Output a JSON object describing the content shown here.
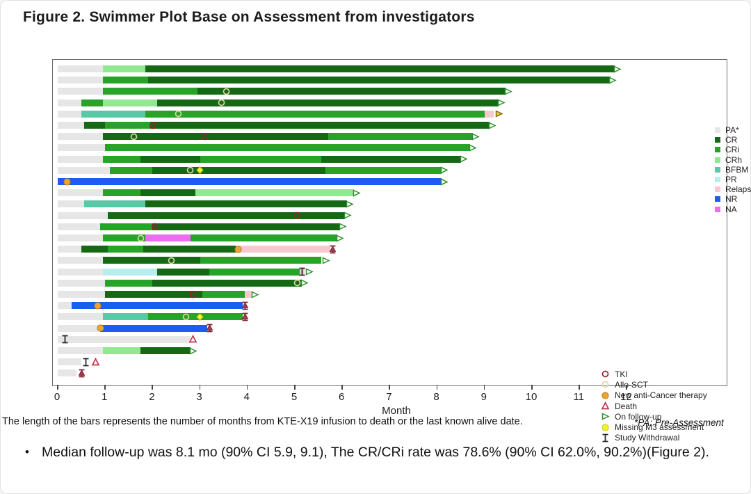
{
  "title": "Figure 2. Swimmer Plot Base on Assessment from investigators",
  "axis": {
    "label": "Month",
    "ticks": [
      "0",
      "1",
      "2",
      "3",
      "4",
      "5",
      "6",
      "7",
      "8",
      "9",
      "10",
      "11",
      "12"
    ]
  },
  "footnote_left": "The length of the bars represents the number of months from KTE-X19 infusion to death or the last known alive date.",
  "footnote_right": "*PA: Pre-Assessment",
  "bullet": {
    "marker": "•",
    "text": "Median follow-up was 8.1 mo (90% CI 5.9, 9.1), The CR/CRi rate was 78.6% (90% CI 62.0%, 90.2%)(Figure 2)."
  },
  "colors": {
    "PA": "#e6e6e6",
    "CR": "#156915",
    "CRi": "#27a327",
    "CRh": "#90e890",
    "BFBM": "#58c9a6",
    "PR": "#b7eded",
    "Relapse": "#f6c9ce",
    "NR": "#1d5cf0",
    "NA": "#ee6cee",
    "tki": "#95202e",
    "allo": "#ddd6a2",
    "orange": "#f0a335",
    "death": "#c4324a",
    "followup": "#2f8f2f",
    "m3": "#f2f22c",
    "wd": "#2b2b2b",
    "wd_death": "#7e2533"
  },
  "series_legend": [
    {
      "key": "PA",
      "label": "PA*"
    },
    {
      "key": "CR",
      "label": "CR"
    },
    {
      "key": "CRi",
      "label": "CRi"
    },
    {
      "key": "CRh",
      "label": "CRh"
    },
    {
      "key": "BFBM",
      "label": "BFBM"
    },
    {
      "key": "PR",
      "label": "PR"
    },
    {
      "key": "Relapse",
      "label": "Relapse"
    },
    {
      "key": "NR",
      "label": "NR"
    },
    {
      "key": "NA",
      "label": "NA"
    }
  ],
  "marker_legend": [
    {
      "type": "tki",
      "label": "TKI"
    },
    {
      "type": "allo",
      "label": "Allo-SCT"
    },
    {
      "type": "orange",
      "label": "New anti-Cancer therapy"
    },
    {
      "type": "death",
      "label": "Death"
    },
    {
      "type": "followup",
      "label": "On follow-up"
    },
    {
      "type": "m3_legend",
      "label": "Missing M3 assessment"
    },
    {
      "type": "wd",
      "label": "Study Withdrawal"
    }
  ],
  "chart_data": {
    "type": "swimmer",
    "unit": "months",
    "xlabel": "Month",
    "xlim": [
      0,
      12
    ],
    "states": [
      "PA",
      "CR",
      "CRi",
      "CRh",
      "BFBM",
      "PR",
      "Relapse",
      "NR",
      "NA"
    ],
    "patients": [
      {
        "segments": [
          [
            "PA",
            0,
            0.95
          ],
          [
            "CRh",
            0.95,
            1.85
          ],
          [
            "CR",
            1.85,
            11.75
          ]
        ],
        "markers": [
          [
            "followup",
            11.8
          ]
        ]
      },
      {
        "segments": [
          [
            "PA",
            0,
            0.95
          ],
          [
            "CRi",
            0.95,
            1.9
          ],
          [
            "CR",
            1.9,
            11.65
          ]
        ],
        "markers": [
          [
            "followup",
            11.7
          ]
        ]
      },
      {
        "segments": [
          [
            "PA",
            0,
            0.95
          ],
          [
            "CRi",
            0.95,
            2.95
          ],
          [
            "CR",
            2.95,
            9.45
          ]
        ],
        "markers": [
          [
            "allo",
            3.55
          ],
          [
            "followup",
            9.5
          ]
        ]
      },
      {
        "segments": [
          [
            "PA",
            0,
            0.5
          ],
          [
            "CRi",
            0.5,
            0.95
          ],
          [
            "CRh",
            0.95,
            2.1
          ],
          [
            "CR",
            2.1,
            9.3
          ]
        ],
        "markers": [
          [
            "allo",
            3.45
          ],
          [
            "followup",
            9.35
          ]
        ]
      },
      {
        "segments": [
          [
            "PA",
            0,
            0.5
          ],
          [
            "BFBM",
            0.5,
            1.85
          ],
          [
            "CRi",
            1.85,
            9.0
          ],
          [
            "Relapse",
            9.0,
            9.2
          ]
        ],
        "markers": [
          [
            "allo",
            2.55
          ],
          [
            "allo_followup",
            9.3
          ]
        ]
      },
      {
        "segments": [
          [
            "PA",
            0,
            0.55
          ],
          [
            "CR",
            0.55,
            1.0
          ],
          [
            "CRi",
            1.0,
            1.95
          ],
          [
            "CR",
            1.95,
            9.1
          ]
        ],
        "markers": [
          [
            "tki",
            2.0
          ],
          [
            "followup",
            9.15
          ]
        ]
      },
      {
        "segments": [
          [
            "PA",
            0,
            0.95
          ],
          [
            "CR",
            0.95,
            5.7
          ],
          [
            "CRi",
            5.7,
            8.75
          ]
        ],
        "markers": [
          [
            "allo",
            1.6
          ],
          [
            "tki",
            3.1
          ],
          [
            "followup",
            8.8
          ]
        ]
      },
      {
        "segments": [
          [
            "PA",
            0,
            1.0
          ],
          [
            "CRi",
            1.0,
            8.7
          ]
        ],
        "markers": [
          [
            "followup",
            8.75
          ]
        ]
      },
      {
        "segments": [
          [
            "PA",
            0,
            0.95
          ],
          [
            "CRi",
            0.95,
            1.75
          ],
          [
            "CR",
            1.75,
            3.0
          ],
          [
            "CRi",
            3.0,
            5.55
          ],
          [
            "CR",
            5.55,
            8.5
          ]
        ],
        "markers": [
          [
            "followup",
            8.55
          ]
        ]
      },
      {
        "segments": [
          [
            "PA",
            0,
            1.1
          ],
          [
            "CRi",
            1.1,
            2.0
          ],
          [
            "CR",
            2.0,
            5.65
          ],
          [
            "CRi",
            5.65,
            8.1
          ]
        ],
        "markers": [
          [
            "allo",
            2.8
          ],
          [
            "m3",
            3.0
          ],
          [
            "followup",
            8.15
          ]
        ]
      },
      {
        "segments": [
          [
            "NR",
            0,
            8.1
          ]
        ],
        "markers": [
          [
            "orange",
            0.2
          ],
          [
            "followup",
            8.15
          ]
        ]
      },
      {
        "segments": [
          [
            "PA",
            0,
            0.95
          ],
          [
            "CRi",
            0.95,
            1.75
          ],
          [
            "CR",
            1.75,
            2.9
          ],
          [
            "CRh",
            2.9,
            6.25
          ]
        ],
        "markers": [
          [
            "followup",
            6.3
          ]
        ]
      },
      {
        "segments": [
          [
            "PA",
            0,
            0.55
          ],
          [
            "BFBM",
            0.55,
            1.85
          ],
          [
            "CR",
            1.85,
            6.1
          ]
        ],
        "markers": [
          [
            "followup",
            6.15
          ]
        ]
      },
      {
        "segments": [
          [
            "PA",
            0,
            1.05
          ],
          [
            "CR",
            1.05,
            6.05
          ]
        ],
        "markers": [
          [
            "tki",
            5.05
          ],
          [
            "followup",
            6.1
          ]
        ]
      },
      {
        "segments": [
          [
            "PA",
            0,
            0.9
          ],
          [
            "CRi",
            0.9,
            2.0
          ],
          [
            "CR",
            2.0,
            5.95
          ]
        ],
        "markers": [
          [
            "tki",
            2.05
          ],
          [
            "followup",
            6.0
          ]
        ]
      },
      {
        "segments": [
          [
            "PA",
            0,
            0.95
          ],
          [
            "CRi",
            0.95,
            1.85
          ],
          [
            "NA",
            1.85,
            2.8
          ],
          [
            "CRi",
            2.8,
            5.9
          ]
        ],
        "markers": [
          [
            "allo",
            1.75
          ],
          [
            "followup",
            5.95
          ]
        ]
      },
      {
        "segments": [
          [
            "PA",
            0,
            0.5
          ],
          [
            "CR",
            0.5,
            1.05
          ],
          [
            "CRi",
            1.05,
            1.8
          ],
          [
            "CR",
            1.8,
            3.75
          ],
          [
            "Relapse",
            3.75,
            5.75
          ]
        ],
        "markers": [
          [
            "orange",
            3.8
          ],
          [
            "wd_death",
            5.8
          ]
        ]
      },
      {
        "segments": [
          [
            "PA",
            0,
            0.95
          ],
          [
            "CR",
            0.95,
            3.0
          ],
          [
            "CRi",
            3.0,
            5.55
          ]
        ],
        "markers": [
          [
            "allo",
            2.4
          ],
          [
            "followup",
            5.65
          ]
        ]
      },
      {
        "segments": [
          [
            "PA",
            0,
            0.95
          ],
          [
            "PR",
            0.95,
            2.1
          ],
          [
            "CR",
            2.1,
            3.2
          ],
          [
            "CRi",
            3.2,
            5.1
          ],
          [
            "Relapse",
            5.1,
            5.2
          ]
        ],
        "markers": [
          [
            "wd",
            5.15
          ],
          [
            "followup",
            5.3
          ]
        ]
      },
      {
        "segments": [
          [
            "PA",
            0,
            1.0
          ],
          [
            "CRi",
            1.0,
            2.0
          ],
          [
            "CR",
            2.0,
            5.15
          ]
        ],
        "markers": [
          [
            "allo",
            5.05
          ],
          [
            "followup",
            5.2
          ]
        ]
      },
      {
        "segments": [
          [
            "PA",
            0,
            1.0
          ],
          [
            "CR",
            1.0,
            3.05
          ],
          [
            "CRi",
            3.05,
            3.95
          ],
          [
            "Relapse",
            3.95,
            4.1
          ]
        ],
        "markers": [
          [
            "tki",
            2.85
          ],
          [
            "followup",
            4.15
          ]
        ]
      },
      {
        "segments": [
          [
            "PA",
            0,
            0.3
          ],
          [
            "NR",
            0.3,
            3.9
          ]
        ],
        "markers": [
          [
            "orange",
            0.85
          ],
          [
            "wd_death",
            3.95
          ]
        ]
      },
      {
        "segments": [
          [
            "PA",
            0,
            0.95
          ],
          [
            "BFBM",
            0.95,
            1.9
          ],
          [
            "CRi",
            1.9,
            3.9
          ]
        ],
        "markers": [
          [
            "allo",
            2.7
          ],
          [
            "m3",
            3.0
          ],
          [
            "wd_death",
            3.95
          ]
        ]
      },
      {
        "segments": [
          [
            "PA",
            0,
            0.9
          ],
          [
            "NR",
            0.9,
            3.15
          ]
        ],
        "markers": [
          [
            "orange",
            0.9
          ],
          [
            "wd_death",
            3.2
          ]
        ]
      },
      {
        "segments": [
          [
            "PA",
            0,
            2.8
          ]
        ],
        "markers": [
          [
            "wd",
            0.15
          ],
          [
            "death",
            2.85
          ]
        ]
      },
      {
        "segments": [
          [
            "PA",
            0,
            0.95
          ],
          [
            "CRh",
            0.95,
            1.75
          ],
          [
            "CR",
            1.75,
            2.8
          ]
        ],
        "markers": [
          [
            "followup",
            2.85
          ]
        ]
      },
      {
        "segments": [
          [
            "PA",
            0,
            0.5
          ]
        ],
        "markers": [
          [
            "wd",
            0.6
          ],
          [
            "death",
            0.8
          ]
        ]
      },
      {
        "segments": [
          [
            "PA",
            0,
            0.4
          ]
        ],
        "markers": [
          [
            "wd_death",
            0.5
          ]
        ]
      }
    ]
  }
}
